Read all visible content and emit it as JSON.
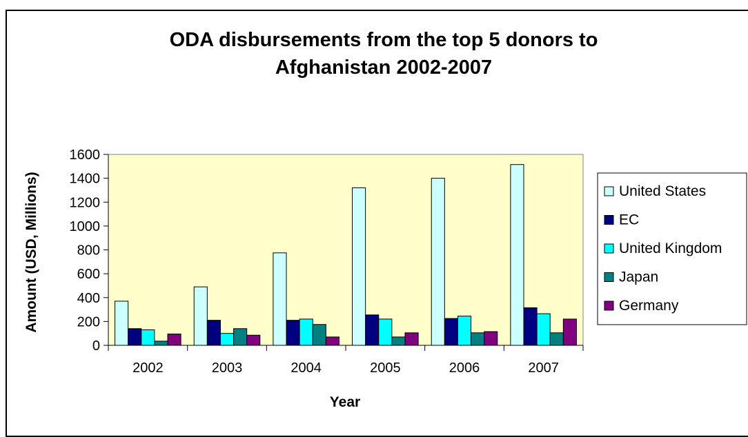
{
  "chart_data": {
    "type": "bar",
    "title_lines": [
      "ODA disbursements from the top 5 donors to",
      "Afghanistan 2002-2007"
    ],
    "xlabel": "Year",
    "ylabel": "Amount (USD, Millions)",
    "ylim": [
      0,
      1600
    ],
    "yticks": [
      0,
      200,
      400,
      600,
      800,
      1000,
      1200,
      1400,
      1600
    ],
    "grid": false,
    "legend_position": "right",
    "plot_background": "#FFFFCC",
    "categories": [
      "2002",
      "2003",
      "2004",
      "2005",
      "2006",
      "2007"
    ],
    "series": [
      {
        "name": "United States",
        "color": "#CCFFFF",
        "values": [
          370,
          490,
          775,
          1320,
          1400,
          1515
        ]
      },
      {
        "name": "EC",
        "color": "#000080",
        "values": [
          140,
          210,
          210,
          255,
          225,
          315
        ]
      },
      {
        "name": "United Kingdom",
        "color": "#00FFFF",
        "values": [
          130,
          100,
          220,
          220,
          245,
          265
        ]
      },
      {
        "name": "Japan",
        "color": "#008080",
        "values": [
          35,
          140,
          175,
          70,
          105,
          105
        ]
      },
      {
        "name": "Germany",
        "color": "#800080",
        "values": [
          95,
          85,
          70,
          105,
          115,
          220
        ]
      }
    ]
  }
}
